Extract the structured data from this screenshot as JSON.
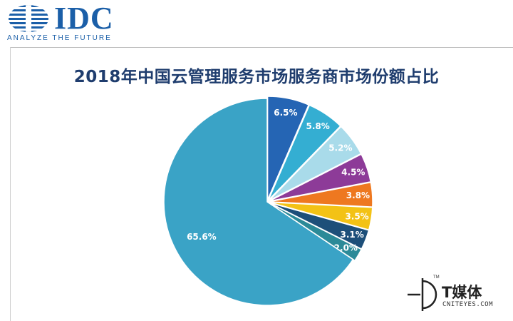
{
  "logo": {
    "text": "IDC",
    "tagline": "ANALYZE THE FUTURE",
    "color": "#1b5fa8"
  },
  "watermark": {
    "name": "T媒体",
    "tm": "TM",
    "url": "CNITEYES.COM"
  },
  "chart_data": {
    "type": "pie",
    "title": "2018年中国云管理服务市场服务商市场份额占比",
    "start_angle_deg": 0,
    "direction": "clockwise",
    "legend": "none",
    "slices": [
      {
        "label": "6.5%",
        "value": 6.5,
        "color": "#2565b4"
      },
      {
        "label": "5.8%",
        "value": 5.8,
        "color": "#34aed2"
      },
      {
        "label": "5.2%",
        "value": 5.2,
        "color": "#a9dbea"
      },
      {
        "label": "4.5%",
        "value": 4.5,
        "color": "#8d3b98"
      },
      {
        "label": "3.8%",
        "value": 3.8,
        "color": "#ee7820"
      },
      {
        "label": "3.5%",
        "value": 3.5,
        "color": "#f3c215"
      },
      {
        "label": "3.1%",
        "value": 3.1,
        "color": "#1d4f79"
      },
      {
        "label": "2.0%",
        "value": 2.0,
        "color": "#2b8a98"
      },
      {
        "label": "65.6%",
        "value": 65.6,
        "color": "#3aa3c6"
      }
    ]
  }
}
